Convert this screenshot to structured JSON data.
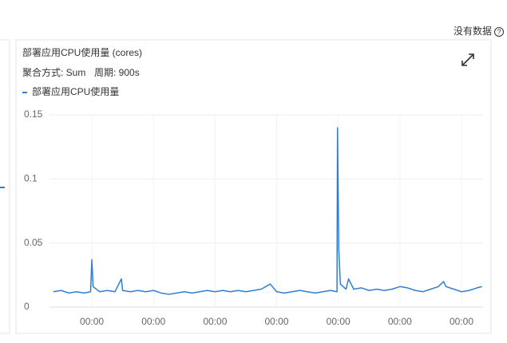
{
  "header": {
    "status": "没有数据"
  },
  "chart_data": {
    "type": "line",
    "title": "部署应用CPU使用量 (cores)",
    "aggregation": "聚合方式: Sum",
    "period": "周期: 900s",
    "xlim": [
      -16.5,
      152.4
    ],
    "xticks": [
      {
        "value": 0,
        "label": "00:00"
      },
      {
        "value": 24,
        "label": "00:00"
      },
      {
        "value": 48,
        "label": "00:00"
      },
      {
        "value": 72,
        "label": "00:00"
      },
      {
        "value": 96,
        "label": "00:00"
      },
      {
        "value": 120,
        "label": "00:00"
      },
      {
        "value": 144,
        "label": "00:00"
      }
    ],
    "ylim": [
      0,
      0.15
    ],
    "yticks": [
      0,
      0.05,
      0.1,
      0.15
    ],
    "grid": true,
    "x": [
      -15,
      -12,
      -9,
      -6,
      -3,
      -0.5,
      0,
      0.5,
      3,
      6,
      9,
      11.5,
      12,
      15,
      18,
      21,
      24,
      27,
      30,
      33,
      36,
      39,
      42,
      45,
      48,
      51,
      54,
      57,
      60,
      63,
      66,
      69.5,
      72,
      75,
      78,
      81,
      84,
      87,
      90,
      93,
      95.5,
      95.7,
      96.2,
      96.8,
      99,
      100,
      102,
      105,
      108,
      111,
      114,
      117,
      120,
      123,
      126,
      129,
      132,
      135,
      137,
      138,
      141,
      144,
      147,
      150,
      152
    ],
    "series": [
      {
        "name": "部署应用CPU使用量",
        "color": "#2f7fd0",
        "values": [
          0.012,
          0.013,
          0.011,
          0.012,
          0.011,
          0.012,
          0.037,
          0.016,
          0.012,
          0.013,
          0.012,
          0.022,
          0.013,
          0.012,
          0.013,
          0.012,
          0.013,
          0.011,
          0.01,
          0.011,
          0.012,
          0.011,
          0.012,
          0.013,
          0.012,
          0.013,
          0.012,
          0.013,
          0.012,
          0.013,
          0.014,
          0.018,
          0.012,
          0.011,
          0.012,
          0.013,
          0.012,
          0.011,
          0.012,
          0.013,
          0.012,
          0.14,
          0.045,
          0.018,
          0.014,
          0.022,
          0.014,
          0.015,
          0.013,
          0.014,
          0.013,
          0.014,
          0.016,
          0.015,
          0.013,
          0.012,
          0.014,
          0.016,
          0.02,
          0.016,
          0.014,
          0.012,
          0.013,
          0.015,
          0.016
        ]
      }
    ]
  }
}
